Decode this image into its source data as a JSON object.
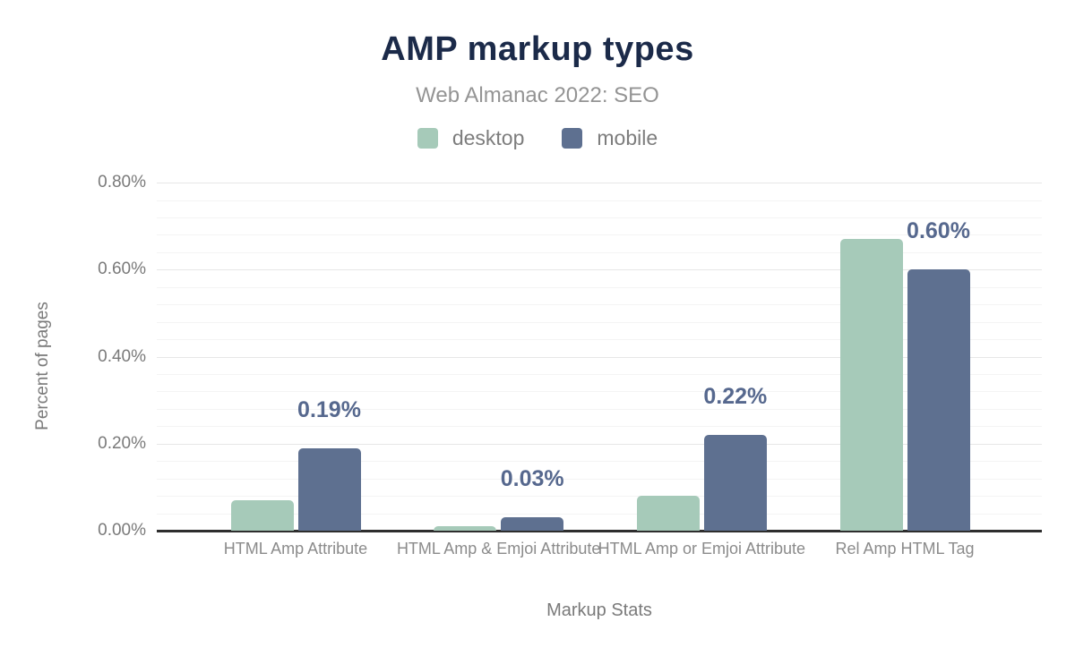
{
  "chart_data": {
    "type": "bar",
    "title": "AMP markup types",
    "subtitle": "Web Almanac 2022: SEO",
    "xlabel": "Markup Stats",
    "ylabel": "Percent of pages",
    "categories": [
      "HTML Amp Attribute",
      "HTML Amp & Emjoi Attribute",
      "HTML Amp or Emjoi Attribute",
      "Rel Amp HTML Tag"
    ],
    "series": [
      {
        "name": "desktop",
        "color": "#a6cab9",
        "values": [
          0.07,
          0.01,
          0.08,
          0.67
        ]
      },
      {
        "name": "mobile",
        "color": "#5e7090",
        "values": [
          0.19,
          0.03,
          0.22,
          0.6
        ]
      }
    ],
    "data_labels": {
      "on_series": "mobile",
      "texts": [
        "0.19%",
        "0.03%",
        "0.22%",
        "0.60%"
      ]
    },
    "y_axis": {
      "min": 0,
      "max": 0.8,
      "major_step": 0.2,
      "minor_step": 0.04,
      "tick_labels": [
        "0.00%",
        "0.20%",
        "0.40%",
        "0.60%",
        "0.80%"
      ]
    },
    "x_axis": {
      "label": "Markup Stats"
    },
    "legend": {
      "position": "top",
      "items": [
        {
          "label": "desktop",
          "color": "#a6cab9"
        },
        {
          "label": "mobile",
          "color": "#5e7090"
        }
      ]
    },
    "grid": "horizontal",
    "ylim": [
      0,
      0.8
    ]
  },
  "colors": {
    "title": "#1b2a49",
    "subtitle": "#949494",
    "axis_text": "#7a7a7a",
    "category_text": "#8b8b8b",
    "data_label": "#56688e",
    "axis_line": "#2e2e2e",
    "grid_major": "#e7e7e7",
    "grid_minor": "#f4f4f4",
    "background": "#ffffff"
  }
}
